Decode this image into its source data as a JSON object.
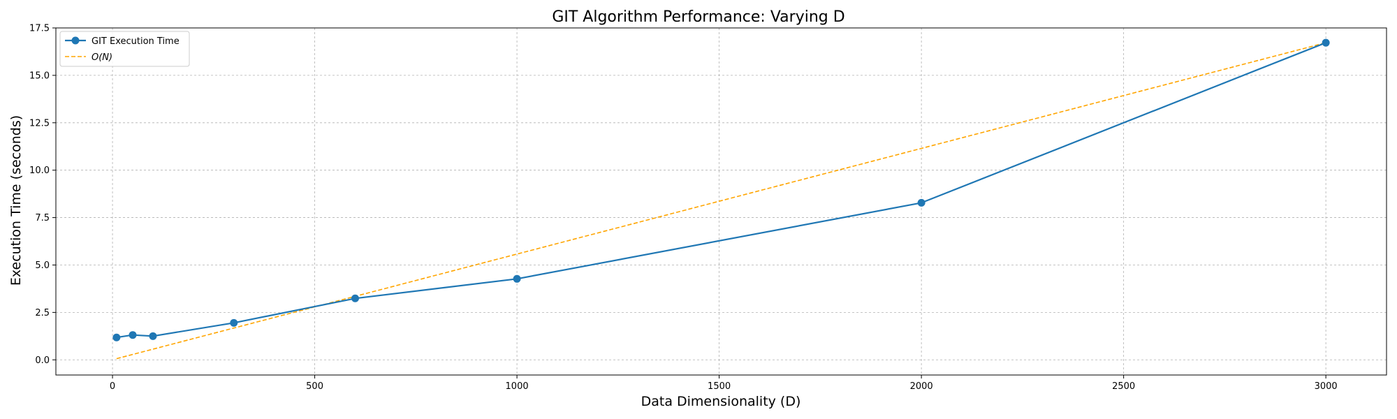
{
  "chart_data": {
    "type": "line",
    "title": "GIT Algorithm Performance: Varying D",
    "xlabel": "Data Dimensionality (D)",
    "ylabel": "Execution Time (seconds)",
    "xlim": [
      -140,
      3150
    ],
    "ylim": [
      -0.8,
      17.5
    ],
    "xticks": [
      0,
      500,
      1000,
      1500,
      2000,
      2500,
      3000
    ],
    "xtick_labels": [
      "0",
      "500",
      "1000",
      "1500",
      "2000",
      "2500",
      "3000"
    ],
    "yticks": [
      0,
      2.5,
      5,
      7.5,
      10,
      12.5,
      15,
      17.5
    ],
    "ytick_labels": [
      "0.0",
      "2.5",
      "5.0",
      "7.5",
      "10.0",
      "12.5",
      "15.0",
      "17.5"
    ],
    "grid": true,
    "legend_position": "top-left",
    "series": [
      {
        "name": "GIT Execution Time",
        "style": "solid-with-markers",
        "color": "#1f77b4",
        "x": [
          10,
          50,
          100,
          300,
          600,
          1000,
          2000,
          3000
        ],
        "y": [
          1.18,
          1.31,
          1.25,
          1.95,
          3.24,
          4.27,
          8.28,
          16.72
        ]
      },
      {
        "name": "O(N)",
        "style": "dashed",
        "color": "#ffa500",
        "x": [
          10,
          3000
        ],
        "y": [
          0.06,
          16.72
        ]
      }
    ]
  }
}
